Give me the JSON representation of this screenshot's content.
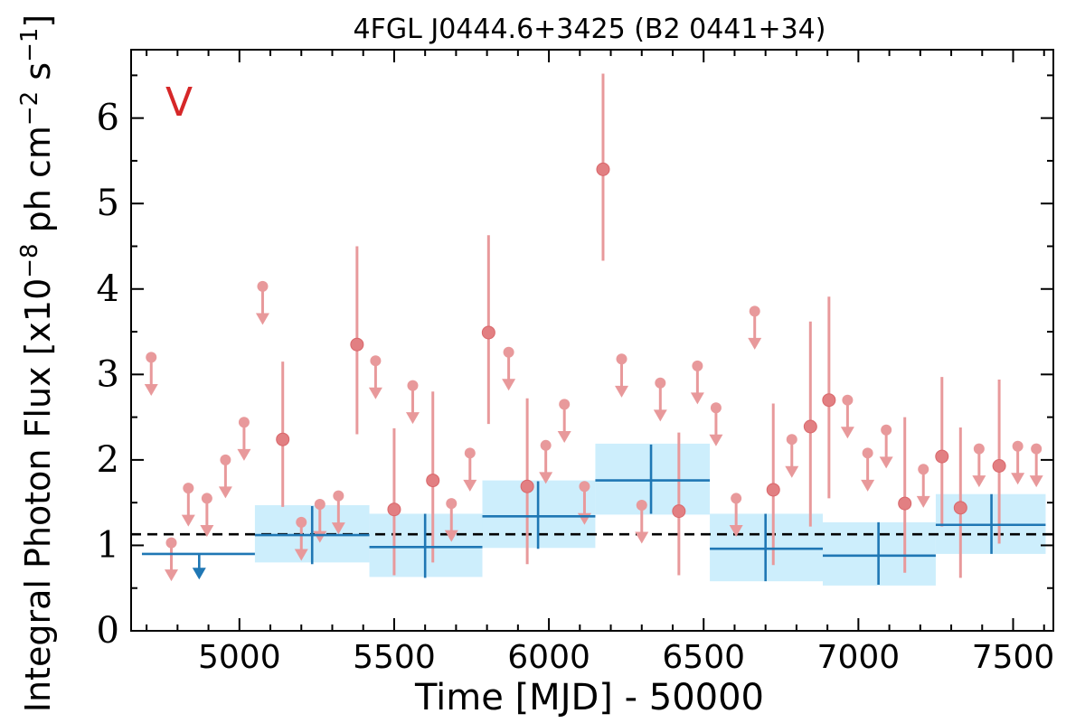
{
  "chart_data": {
    "type": "scatter",
    "title": "4FGL J0444.6+3425 (B2 0441+34)",
    "xlabel": "Time [MJD] - 50000",
    "ylabel": "Integral Photon Flux [x10",
    "ylabel_exp": "−8",
    "ylabel_mid": " ph cm",
    "ylabel_exp2": "−2",
    "ylabel_end": " s",
    "ylabel_exp3": "−1",
    "ylabel_close": "]",
    "flag": "V",
    "xlim": [
      4650,
      7630
    ],
    "ylim": [
      0,
      6.8
    ],
    "xticks": [
      5000,
      5500,
      6000,
      6500,
      7000,
      7500
    ],
    "yticks": [
      0,
      1,
      2,
      3,
      4,
      5,
      6
    ],
    "mean_flux": 1.13,
    "colors": {
      "monthly": "#e8999b",
      "yearly": "#1f77b4",
      "yearly_band": "#cdeefc",
      "mean": "#000000",
      "flag": "#d62728"
    },
    "monthly_points": [
      {
        "x": 4715,
        "y": 3.2,
        "ul": true
      },
      {
        "x": 4780,
        "y": 1.03,
        "ul": true
      },
      {
        "x": 4835,
        "y": 1.67,
        "ul": true
      },
      {
        "x": 4895,
        "y": 1.55,
        "ul": true
      },
      {
        "x": 4955,
        "y": 2.0,
        "ul": true
      },
      {
        "x": 5015,
        "y": 2.44,
        "ul": true
      },
      {
        "x": 5075,
        "y": 4.03,
        "ul": true
      },
      {
        "x": 5140,
        "y": 2.24,
        "ylo": 1.45,
        "yhi": 3.15
      },
      {
        "x": 5200,
        "y": 1.27,
        "ul": true
      },
      {
        "x": 5260,
        "y": 1.48,
        "ul": true
      },
      {
        "x": 5320,
        "y": 1.58,
        "ul": true
      },
      {
        "x": 5380,
        "y": 3.35,
        "ylo": 2.3,
        "yhi": 4.5
      },
      {
        "x": 5440,
        "y": 3.16,
        "ul": true
      },
      {
        "x": 5500,
        "y": 1.42,
        "ylo": 0.65,
        "yhi": 2.37
      },
      {
        "x": 5560,
        "y": 2.87,
        "ul": true
      },
      {
        "x": 5625,
        "y": 1.76,
        "ylo": 0.8,
        "yhi": 2.8
      },
      {
        "x": 5685,
        "y": 1.49,
        "ul": true
      },
      {
        "x": 5745,
        "y": 2.08,
        "ul": true
      },
      {
        "x": 5805,
        "y": 3.49,
        "ylo": 2.42,
        "yhi": 4.63
      },
      {
        "x": 5870,
        "y": 3.26,
        "ul": true
      },
      {
        "x": 5930,
        "y": 1.69,
        "ylo": 0.78,
        "yhi": 2.72
      },
      {
        "x": 5990,
        "y": 2.17,
        "ul": true
      },
      {
        "x": 6050,
        "y": 2.65,
        "ul": true
      },
      {
        "x": 6115,
        "y": 1.69,
        "ul": true
      },
      {
        "x": 6175,
        "y": 5.4,
        "ylo": 4.33,
        "yhi": 6.52
      },
      {
        "x": 6235,
        "y": 3.18,
        "ul": true
      },
      {
        "x": 6300,
        "y": 1.47,
        "ul": true
      },
      {
        "x": 6360,
        "y": 2.9,
        "ul": true
      },
      {
        "x": 6420,
        "y": 1.4,
        "ylo": 0.65,
        "yhi": 2.32
      },
      {
        "x": 6480,
        "y": 3.1,
        "ul": true
      },
      {
        "x": 6540,
        "y": 2.61,
        "ul": true
      },
      {
        "x": 6605,
        "y": 1.55,
        "ul": true
      },
      {
        "x": 6665,
        "y": 3.74,
        "ul": true
      },
      {
        "x": 6725,
        "y": 1.65,
        "ylo": 0.77,
        "yhi": 2.66
      },
      {
        "x": 6785,
        "y": 2.24,
        "ul": true
      },
      {
        "x": 6845,
        "y": 2.39,
        "ylo": 1.22,
        "yhi": 3.62
      },
      {
        "x": 6905,
        "y": 2.7,
        "ylo": 1.55,
        "yhi": 3.91
      },
      {
        "x": 6965,
        "y": 2.7,
        "ul": true
      },
      {
        "x": 7030,
        "y": 2.08,
        "ul": true
      },
      {
        "x": 7090,
        "y": 2.35,
        "ul": true
      },
      {
        "x": 7150,
        "y": 1.49,
        "ylo": 0.68,
        "yhi": 2.5
      },
      {
        "x": 7210,
        "y": 1.89,
        "ul": true
      },
      {
        "x": 7270,
        "y": 2.04,
        "ylo": 1.22,
        "yhi": 2.97
      },
      {
        "x": 7330,
        "y": 1.44,
        "ylo": 0.62,
        "yhi": 2.38
      },
      {
        "x": 7390,
        "y": 2.13,
        "ul": true
      },
      {
        "x": 7455,
        "y": 1.93,
        "ylo": 1.02,
        "yhi": 2.94
      },
      {
        "x": 7515,
        "y": 2.16,
        "ul": true
      },
      {
        "x": 7575,
        "y": 2.13,
        "ul": true
      }
    ],
    "yearly_bins": [
      {
        "x": 4870,
        "x0": 4685,
        "x1": 5050,
        "y": 0.9,
        "ul": true
      },
      {
        "x": 5235,
        "x0": 5050,
        "x1": 5420,
        "y": 1.12,
        "ylo": 0.78,
        "yhi": 1.46,
        "blo": 0.8,
        "bhi": 1.47
      },
      {
        "x": 5600,
        "x0": 5420,
        "x1": 5785,
        "y": 0.98,
        "ylo": 0.62,
        "yhi": 1.37,
        "blo": 0.63,
        "bhi": 1.37
      },
      {
        "x": 5965,
        "x0": 5785,
        "x1": 6150,
        "y": 1.34,
        "ylo": 0.96,
        "yhi": 1.75,
        "blo": 0.97,
        "bhi": 1.76
      },
      {
        "x": 6330,
        "x0": 6150,
        "x1": 6520,
        "y": 1.76,
        "ylo": 1.37,
        "yhi": 2.18,
        "blo": 1.36,
        "bhi": 2.19
      },
      {
        "x": 6700,
        "x0": 6520,
        "x1": 6885,
        "y": 0.96,
        "ylo": 0.58,
        "yhi": 1.37,
        "blo": 0.58,
        "bhi": 1.37
      },
      {
        "x": 7065,
        "x0": 6885,
        "x1": 7250,
        "y": 0.88,
        "ylo": 0.54,
        "yhi": 1.27,
        "blo": 0.53,
        "bhi": 1.27
      },
      {
        "x": 7430,
        "x0": 7250,
        "x1": 7605,
        "y": 1.24,
        "ylo": 0.9,
        "yhi": 1.6,
        "blo": 0.9,
        "bhi": 1.6
      }
    ]
  }
}
